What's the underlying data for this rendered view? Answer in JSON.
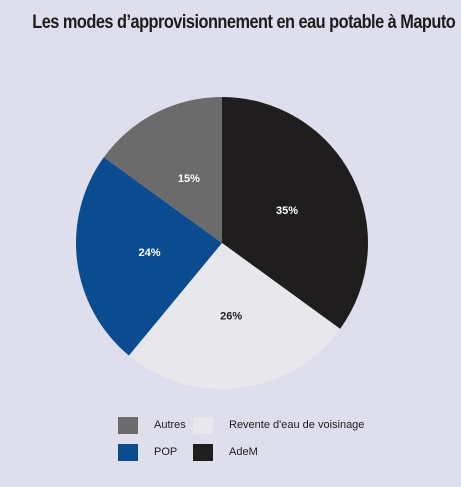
{
  "chart_data": {
    "type": "pie",
    "title": "Les modes d’approvisionnement en eau potable à Maputo",
    "slices": [
      {
        "name": "AdeM",
        "value": 35,
        "label": "35%",
        "color": "#1f1d1e",
        "label_color": "#ffffff"
      },
      {
        "name": "Revente d'eau de voisinage",
        "value": 26,
        "label": "26%",
        "color": "#e7e7ec",
        "label_color": "#1d1d1d"
      },
      {
        "name": "POP",
        "value": 24,
        "label": "24%",
        "color": "#0b4c91",
        "label_color": "#ffffff"
      },
      {
        "name": "Autres",
        "value": 15,
        "label": "15%",
        "color": "#6b6b6c",
        "label_color": "#ffffff"
      }
    ],
    "start": "top",
    "direction": "clockwise",
    "legend": {
      "placement": "bottom",
      "columns": 2,
      "order": [
        "Autres",
        "Revente d'eau de voisinage",
        "POP",
        "AdeM"
      ]
    }
  }
}
